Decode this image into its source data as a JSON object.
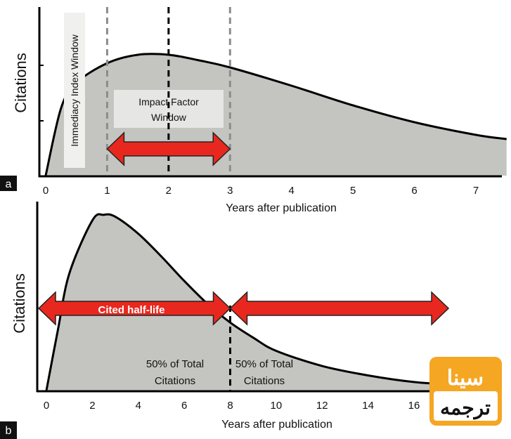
{
  "panels": [
    {
      "panel_label": "a",
      "ylabel": "Citations",
      "xlabel": "Years after publication",
      "immediacy_label": "Immediacy Index Window",
      "impact_label_line1": "Impact Factor",
      "impact_label_line2": "Window"
    },
    {
      "panel_label": "b",
      "ylabel": "Citations",
      "xlabel": "Years after publication",
      "cited_half_life_label": "Cited half-life",
      "left_note_line1": "50% of Total",
      "left_note_line2": "Citations",
      "right_note_line1": "50% of Total",
      "right_note_line2": "Citations"
    }
  ],
  "logo": {
    "line1": "سينا",
    "line2": "ترجمه",
    "color": "#f5a623"
  },
  "colors": {
    "curve_fill": "#c4c4c0",
    "arrow": "#e8281e",
    "dashed_gray": "#8c8c8c",
    "dashed_black": "#000000"
  },
  "chart_data": [
    {
      "type": "area",
      "x": [
        0,
        0.25,
        0.5,
        1,
        1.5,
        2,
        2.5,
        3,
        4,
        5,
        6,
        7,
        7.5
      ],
      "y": [
        0,
        2.4,
        3.3,
        4.0,
        4.3,
        4.3,
        4.1,
        3.85,
        3.2,
        2.5,
        1.9,
        1.45,
        1.3
      ],
      "xlim": [
        -0.1,
        7.5
      ],
      "ylim": [
        0,
        6
      ],
      "xticks": [
        0,
        1,
        2,
        3,
        4,
        5,
        6,
        7
      ],
      "xlabel": "Years after publication",
      "ylabel": "Citations",
      "vlines": [
        {
          "x": 1,
          "style": "dashed-gray"
        },
        {
          "x": 2,
          "style": "dashed-black"
        },
        {
          "x": 3,
          "style": "dashed-gray"
        }
      ],
      "annotations": [
        {
          "text": "Immediacy Index Window",
          "x_range": [
            0,
            1
          ]
        },
        {
          "text": "Impact Factor Window",
          "x_range": [
            1,
            3
          ]
        }
      ],
      "arrows": [
        {
          "from": 1,
          "to": 3
        }
      ]
    },
    {
      "type": "area",
      "x": [
        0,
        0.5,
        1,
        2,
        2.5,
        3,
        4,
        5,
        6,
        7,
        8,
        9,
        10,
        12,
        14,
        16,
        17.8
      ],
      "y": [
        0,
        3.2,
        6.2,
        9.0,
        9.3,
        9.2,
        8.3,
        7.1,
        5.8,
        4.6,
        3.6,
        2.8,
        2.1,
        1.3,
        0.8,
        0.45,
        0.3
      ],
      "xlim": [
        -0.5,
        17.8
      ],
      "ylim": [
        0,
        10
      ],
      "xticks": [
        0,
        2,
        4,
        6,
        8,
        10,
        12,
        14,
        16
      ],
      "xlabel": "Years after publication",
      "ylabel": "Citations",
      "vlines": [
        {
          "x": 8,
          "style": "dashed-black"
        }
      ],
      "annotations": [
        {
          "text": "Cited half-life",
          "x_range": [
            -0.5,
            8
          ]
        },
        {
          "text": "50% of Total Citations",
          "x_range": [
            4,
            8
          ]
        },
        {
          "text": "50% of Total Citations",
          "x_range": [
            8,
            12
          ]
        }
      ],
      "arrows": [
        {
          "from": -0.5,
          "to": 8
        },
        {
          "from": 8,
          "to": 17.5
        }
      ]
    }
  ]
}
